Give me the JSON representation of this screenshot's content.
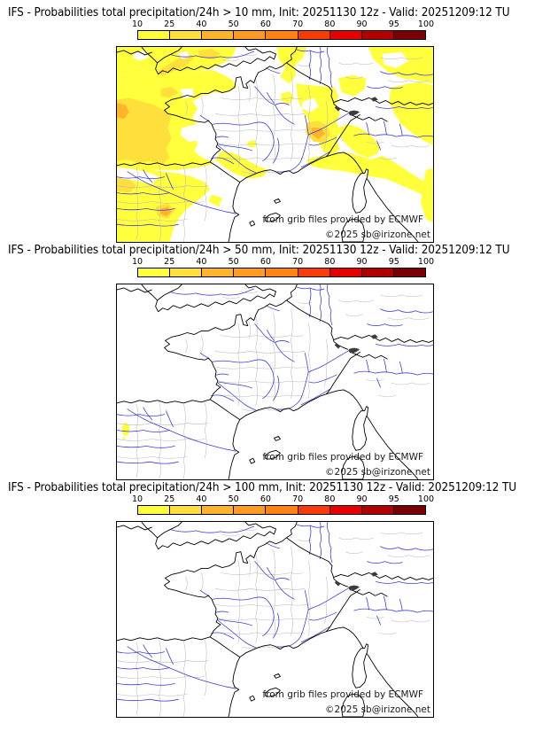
{
  "colorbar": {
    "ticks": [
      "10",
      "25",
      "40",
      "50",
      "60",
      "70",
      "80",
      "90",
      "95",
      "100"
    ],
    "colors": [
      "#ffff3c",
      "#ffdf3c",
      "#ffb42c",
      "#ff9b20",
      "#ff8312",
      "#f93b09",
      "#e60000",
      "#b20000",
      "#7a0004"
    ]
  },
  "panels": [
    {
      "id": "10mm",
      "title": "IFS - Probabilities total precipitation/24h > 10 mm, Init: 20251130 12z - Valid: 20251209:12 TU"
    },
    {
      "id": "50mm",
      "title": "IFS - Probabilities total precipitation/24h > 50 mm, Init: 20251130 12z - Valid: 20251209:12 TU"
    },
    {
      "id": "100mm",
      "title": "IFS - Probabilities total precipitation/24h > 100 mm, Init: 20251130 12z - Valid: 20251209:12 TU"
    }
  ],
  "attribution": {
    "line1": "from grib files provided by ECMWF",
    "line2": "©2025 sb@irizone.net"
  },
  "map_style": {
    "coastline": "#000000",
    "regions": "#b9b9b9",
    "rivers": "#3f3fd9",
    "lakes": "#3c3c3c",
    "sea": "#ffffff"
  }
}
